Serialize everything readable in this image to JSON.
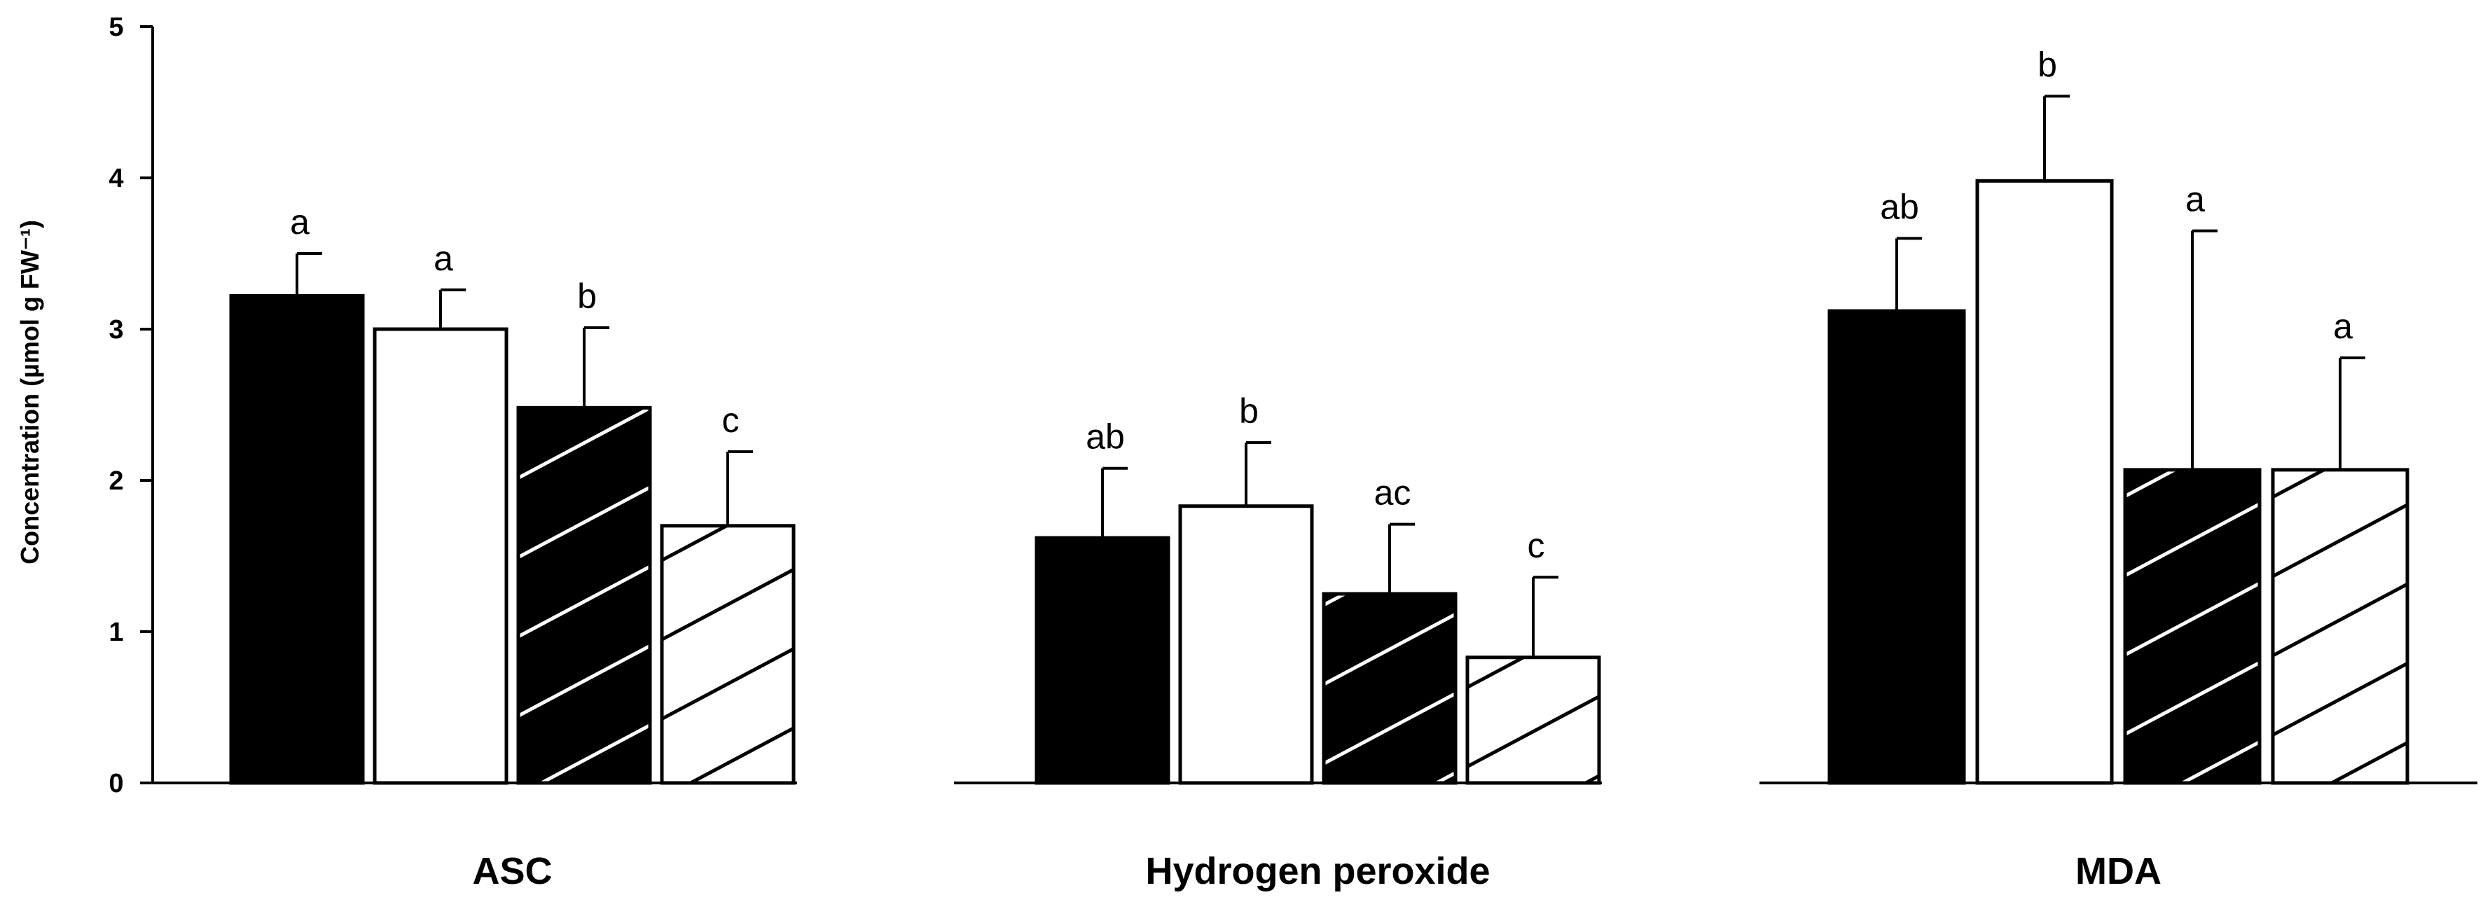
{
  "chart_data": {
    "type": "bar",
    "ylabel": "Concentration (µmol g FW⁻¹)",
    "ylim": [
      0,
      5
    ],
    "yticks": [
      0,
      1,
      2,
      3,
      4,
      5
    ],
    "grid": false,
    "bar_styles": [
      "solid-black",
      "white",
      "black-white-hatch",
      "white-black-hatch"
    ],
    "groups": [
      {
        "label": "ASC",
        "bars": [
          {
            "value": 3.22,
            "error": 0.28,
            "letter": "a"
          },
          {
            "value": 3.0,
            "error": 0.26,
            "letter": "a"
          },
          {
            "value": 2.48,
            "error": 0.53,
            "letter": "b"
          },
          {
            "value": 1.7,
            "error": 0.49,
            "letter": "c"
          }
        ]
      },
      {
        "label": "Hydrogen peroxide",
        "bars": [
          {
            "value": 1.62,
            "error": 0.46,
            "letter": "ab"
          },
          {
            "value": 1.83,
            "error": 0.42,
            "letter": "b"
          },
          {
            "value": 1.25,
            "error": 0.46,
            "letter": "ac"
          },
          {
            "value": 0.83,
            "error": 0.53,
            "letter": "c"
          }
        ]
      },
      {
        "label": "MDA",
        "bars": [
          {
            "value": 3.12,
            "error": 0.48,
            "letter": "ab"
          },
          {
            "value": 3.98,
            "error": 0.56,
            "letter": "b"
          },
          {
            "value": 2.07,
            "error": 1.58,
            "letter": "a"
          },
          {
            "value": 2.07,
            "error": 0.74,
            "letter": "a"
          }
        ]
      }
    ]
  }
}
